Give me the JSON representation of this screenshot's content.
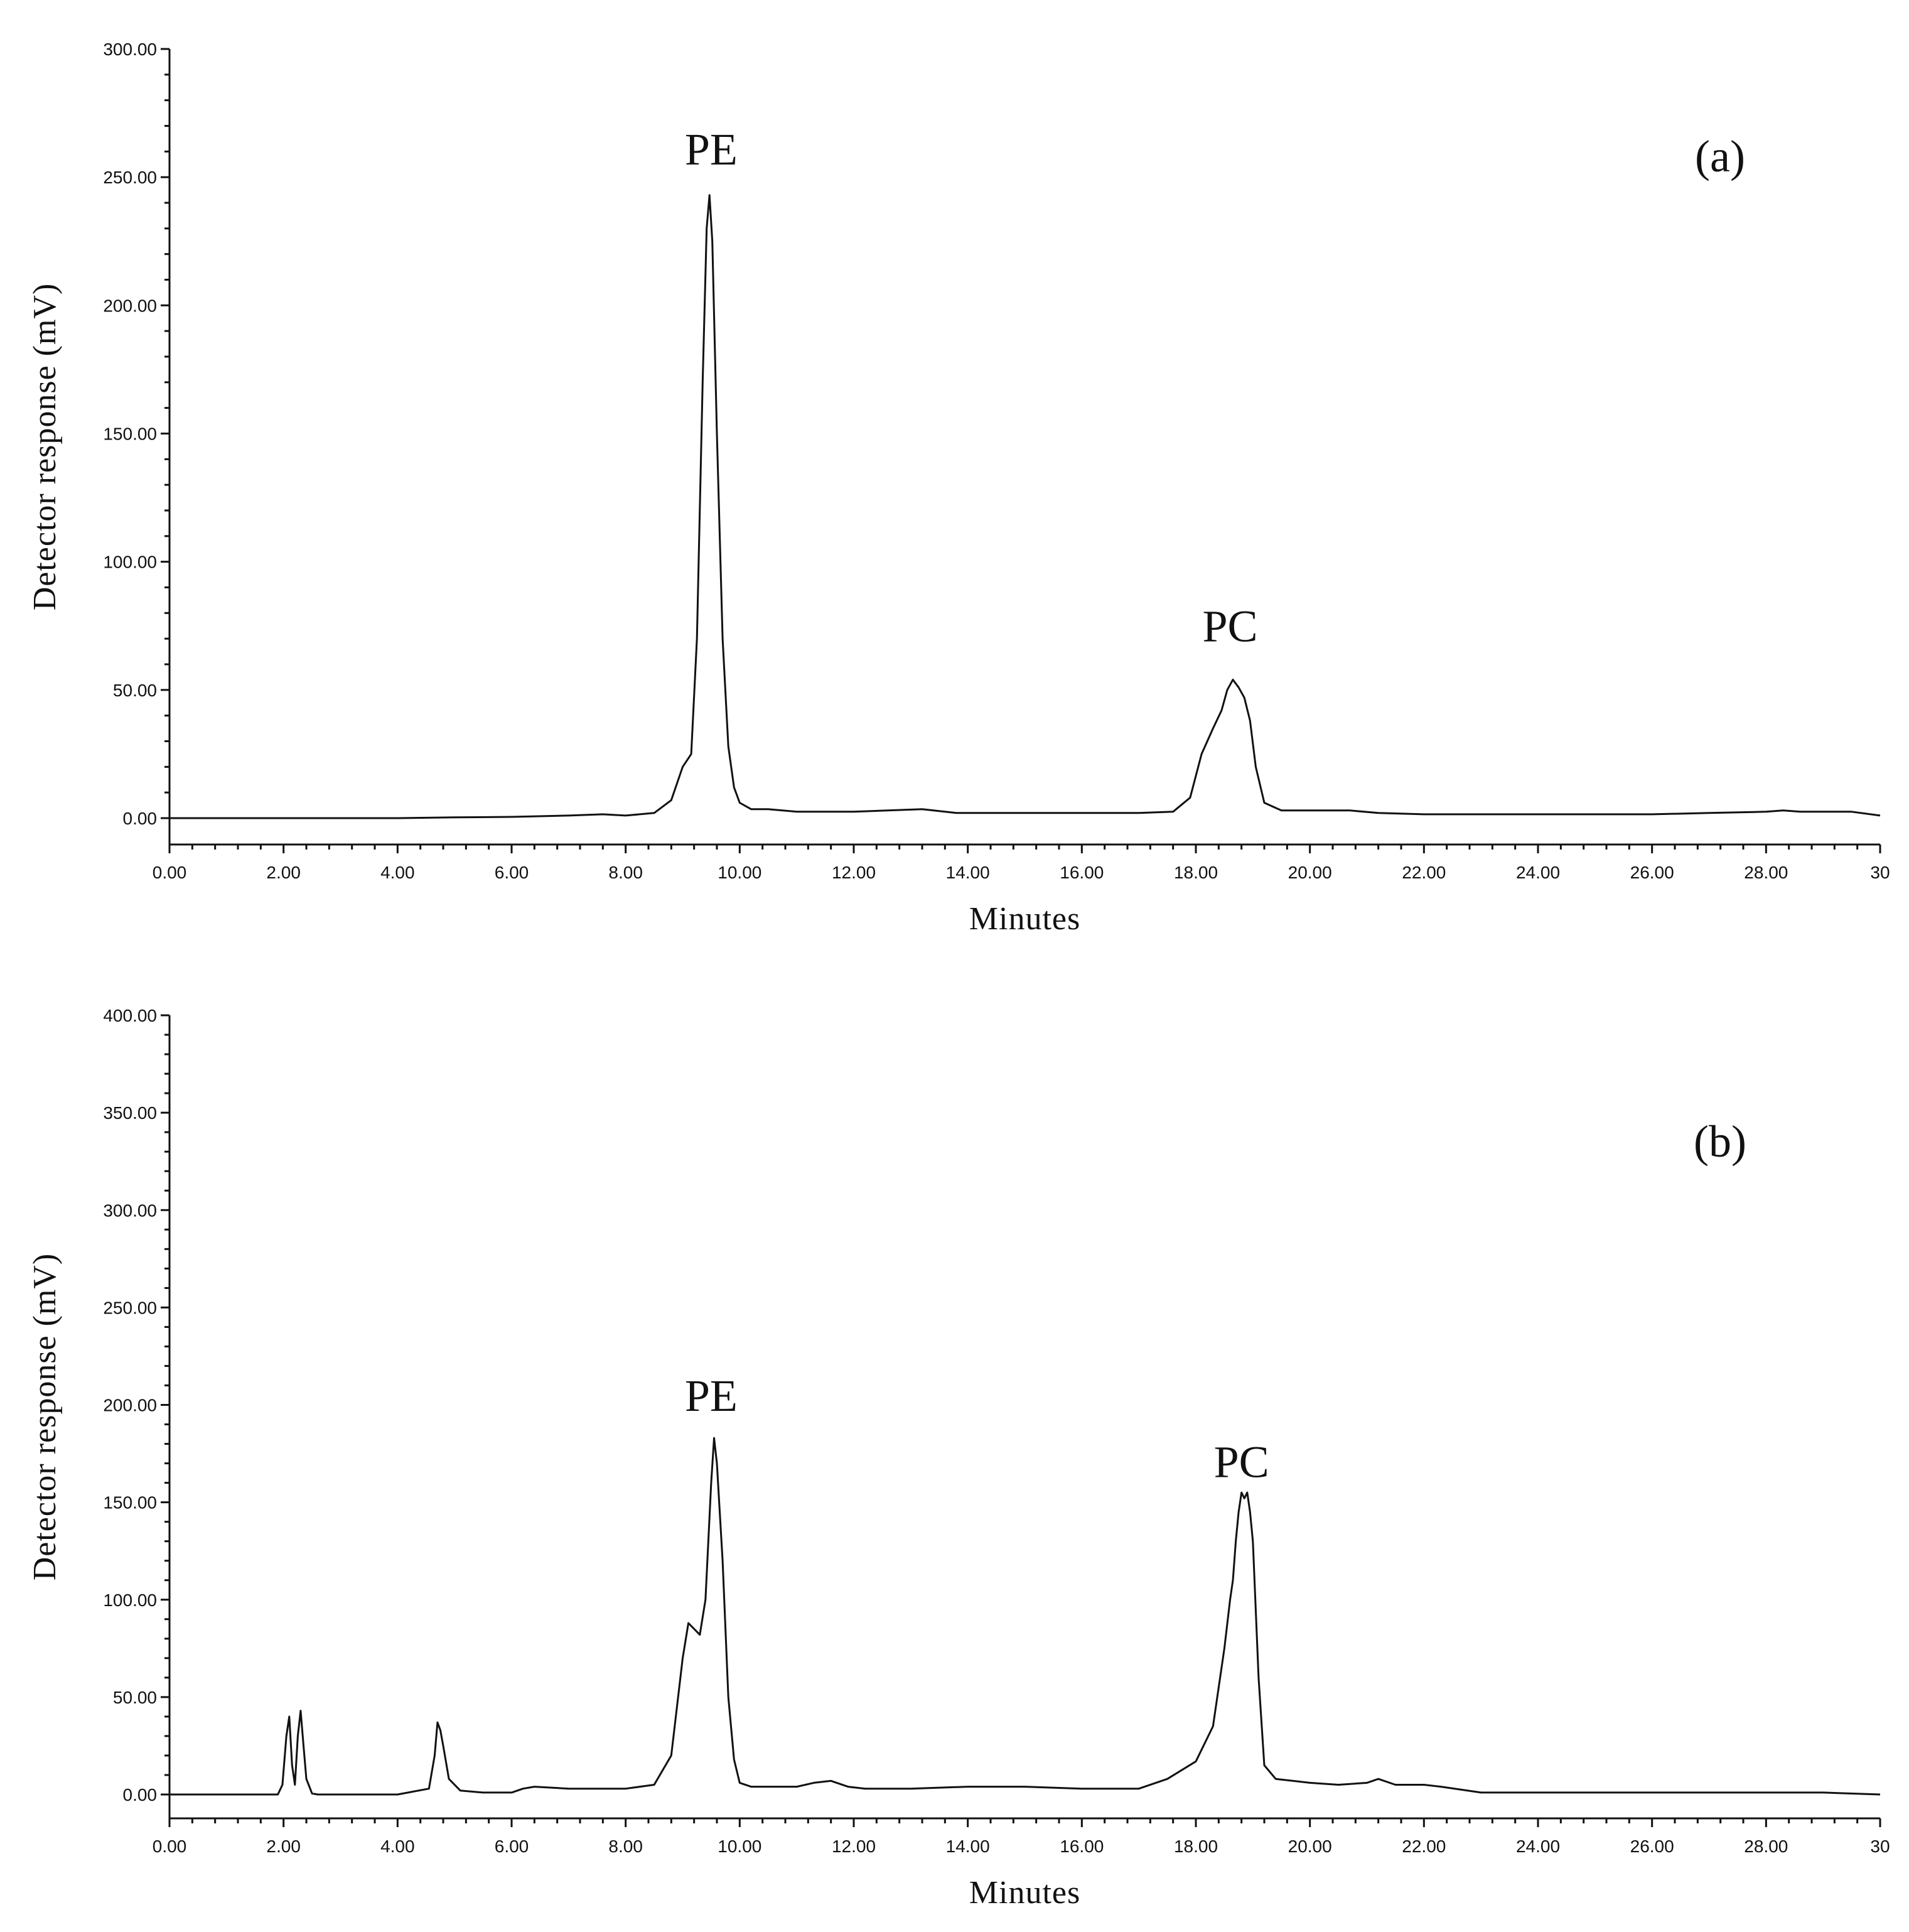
{
  "chart_data": [
    {
      "type": "line",
      "panel_label": "(a)",
      "xlabel": "Minutes",
      "ylabel": "Detector response (mV)",
      "xlim": [
        0,
        30
      ],
      "ylim": [
        0,
        300
      ],
      "x_tick_labels": [
        "0.00",
        "2.00",
        "4.00",
        "6.00",
        "8.00",
        "10.00",
        "12.00",
        "14.00",
        "16.00",
        "18.00",
        "20.00",
        "22.00",
        "24.00",
        "26.00",
        "28.00",
        "30"
      ],
      "y_tick_labels": [
        "0.00",
        "50.00",
        "100.00",
        "150.00",
        "200.00",
        "250.00",
        "300.00"
      ],
      "annotations": [
        {
          "text": "PE",
          "x": 9.5,
          "y": 255
        },
        {
          "text": "PC",
          "x": 18.6,
          "y": 69
        }
      ],
      "series": [
        {
          "x": [
            0,
            2,
            4,
            5,
            6,
            7,
            7.6,
            8,
            8.5,
            8.8,
            9.0,
            9.15,
            9.25,
            9.35,
            9.42,
            9.47,
            9.52,
            9.6,
            9.7,
            9.8,
            9.9,
            10.0,
            10.2,
            10.5,
            11,
            12,
            13.2,
            13.8,
            15,
            16,
            17,
            17.6,
            17.9,
            18.1,
            18.3,
            18.45,
            18.55,
            18.65,
            18.75,
            18.85,
            18.95,
            19.05,
            19.2,
            19.5,
            20,
            20.7,
            21.2,
            22,
            23,
            24,
            25,
            26,
            27,
            28,
            28.3,
            28.6,
            29,
            29.5,
            30
          ],
          "values": [
            0,
            0,
            0,
            0.3,
            0.5,
            1,
            1.5,
            1,
            2,
            7,
            20,
            25,
            70,
            170,
            230,
            243,
            225,
            150,
            70,
            28,
            12,
            6,
            3.5,
            3.5,
            2.5,
            2.5,
            3.5,
            2,
            2,
            2,
            2,
            2.5,
            8,
            25,
            35,
            42,
            50,
            54,
            51,
            47,
            38,
            20,
            6,
            3,
            3,
            3,
            2,
            1.5,
            1.5,
            1.5,
            1.5,
            1.5,
            2,
            2.5,
            3,
            2.5,
            2.5,
            2.5,
            1
          ]
        }
      ]
    },
    {
      "type": "line",
      "panel_label": "(b)",
      "xlabel": "Minutes",
      "ylabel": "Detector response (mV)",
      "xlim": [
        0,
        30
      ],
      "ylim": [
        0,
        400
      ],
      "x_tick_labels": [
        "0.00",
        "2.00",
        "4.00",
        "6.00",
        "8.00",
        "10.00",
        "12.00",
        "14.00",
        "16.00",
        "18.00",
        "20.00",
        "22.00",
        "24.00",
        "26.00",
        "28.00",
        "30"
      ],
      "y_tick_labels": [
        "0.00",
        "50.00",
        "100.00",
        "150.00",
        "200.00",
        "250.00",
        "300.00",
        "350.00",
        "400.00"
      ],
      "annotations": [
        {
          "text": "PE",
          "x": 9.5,
          "y": 197
        },
        {
          "text": "PC",
          "x": 18.8,
          "y": 163
        }
      ],
      "series": [
        {
          "x": [
            0,
            1.9,
            1.98,
            2.05,
            2.1,
            2.15,
            2.2,
            2.25,
            2.3,
            2.35,
            2.4,
            2.5,
            2.6,
            3,
            4,
            4.55,
            4.65,
            4.7,
            4.75,
            4.8,
            4.9,
            5.1,
            5.5,
            6,
            6.2,
            6.4,
            6.7,
            7,
            8,
            8.5,
            8.8,
            9.0,
            9.1,
            9.2,
            9.3,
            9.4,
            9.5,
            9.55,
            9.6,
            9.7,
            9.8,
            9.9,
            10.0,
            10.2,
            10.5,
            11,
            11.3,
            11.6,
            11.9,
            12.2,
            13,
            14,
            15,
            16,
            17,
            17.5,
            18,
            18.3,
            18.5,
            18.6,
            18.65,
            18.7,
            18.75,
            18.8,
            18.85,
            18.9,
            18.95,
            19.0,
            19.1,
            19.2,
            19.4,
            19.7,
            20,
            20.5,
            21,
            21.2,
            21.5,
            22,
            22.3,
            23,
            24,
            25,
            26,
            27,
            28,
            29,
            30
          ],
          "values": [
            0,
            0,
            5,
            30,
            40,
            15,
            5,
            30,
            43,
            25,
            8,
            0.5,
            0,
            0,
            0,
            3,
            20,
            37,
            33,
            25,
            8,
            2,
            1,
            1,
            3,
            4,
            3.5,
            3,
            3,
            5,
            20,
            70,
            88,
            85,
            82,
            100,
            160,
            183,
            170,
            120,
            50,
            18,
            6,
            4,
            4,
            4,
            6,
            7,
            4,
            3,
            3,
            4,
            4,
            3,
            3,
            8,
            17,
            35,
            75,
            100,
            110,
            130,
            145,
            155,
            152,
            155,
            145,
            130,
            60,
            15,
            8,
            7,
            6,
            5,
            6,
            8,
            5,
            5,
            4,
            1,
            1,
            1,
            1,
            1,
            1,
            1,
            0
          ]
        }
      ]
    }
  ]
}
